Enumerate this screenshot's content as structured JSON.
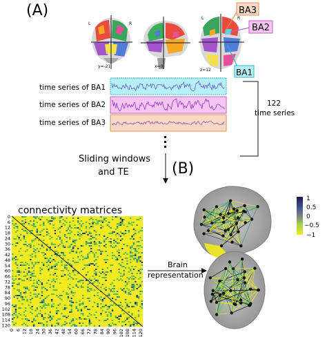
{
  "panel_labels": {
    "a": "(A)",
    "b": "(B)"
  },
  "brain_slices": {
    "coronal": {
      "left": "L",
      "right": "R",
      "caption": "y=-21"
    },
    "sagittal": {
      "caption": "x=0"
    },
    "axial": {
      "left": "L",
      "right": "R",
      "caption": "z=12"
    }
  },
  "regions": [
    {
      "id": "BA1",
      "label": "BA1",
      "color": "#5cd6e6"
    },
    {
      "id": "BA2",
      "label": "BA2",
      "color": "#e58ae8"
    },
    {
      "id": "BA3",
      "label": "BA3",
      "color": "#f0b081"
    }
  ],
  "time_series": [
    {
      "label": "time series of BA1",
      "stroke": "#6a5acd",
      "box_bg": "#b6f0f8",
      "box_border": "#2cb7c9"
    },
    {
      "label": "time series of BA2",
      "stroke": "#9b30d0",
      "box_bg": "#f4c6f4",
      "box_border": "#c061c3"
    },
    {
      "label": "time series of BA3",
      "stroke": "#a54ab0",
      "box_bg": "#f8d9c3",
      "box_border": "#e0915a"
    }
  ],
  "brace_label": {
    "line1": "122",
    "line2": "time series"
  },
  "flow_label": {
    "line1": "Sliding windows",
    "line2": "and  TE"
  },
  "matrix": {
    "title": "connectivity matrices",
    "ticks": [
      "0",
      "6",
      "12",
      "18",
      "24",
      "30",
      "36",
      "42",
      "48",
      "54",
      "60",
      "66",
      "72",
      "78",
      "84",
      "90",
      "96",
      "102",
      "108",
      "114",
      "120"
    ],
    "colors": {
      "background": "#f4ea1f",
      "green": "#58b85a",
      "teal": "#2a8c8c",
      "dark": "#1e3a5f",
      "diagonal": "#1a1a1a"
    }
  },
  "arrow_label": {
    "line1": "Brain",
    "line2": "representation"
  },
  "colorbar": {
    "ticks": [
      "1",
      "0.5",
      "0",
      "−0.5",
      "−1"
    ],
    "colors": [
      "#2b0e4f",
      "#3b4f8c",
      "#808080",
      "#9bd34f",
      "#f4ea1f"
    ]
  }
}
